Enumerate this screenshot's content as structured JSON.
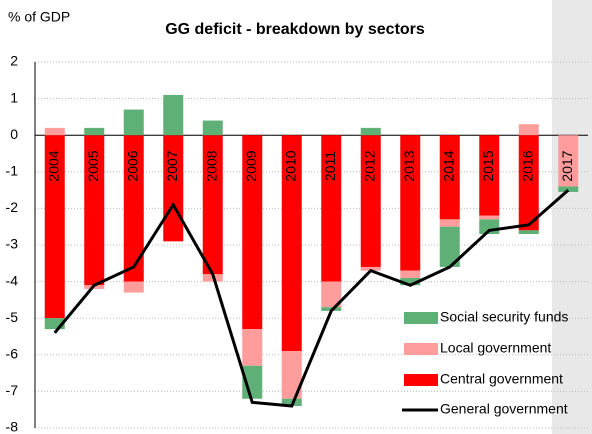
{
  "chart_data": {
    "type": "bar",
    "stacked": true,
    "title": "GG deficit - breakdown by sectors",
    "y_label": "% of GDP",
    "categories": [
      "2004",
      "2005",
      "2006",
      "2007",
      "2008",
      "2009",
      "2010",
      "2011",
      "2012",
      "2013",
      "2014",
      "2015",
      "2016",
      "2017"
    ],
    "series": [
      {
        "name": "Social security funds",
        "color": "#5fb077",
        "values": [
          -0.3,
          0.2,
          0.7,
          1.1,
          0.4,
          -0.9,
          -0.2,
          -0.1,
          0.2,
          -0.2,
          -1.1,
          -0.4,
          -0.1,
          -0.15
        ]
      },
      {
        "name": "Local government",
        "color": "#ff9d9d",
        "values": [
          0.2,
          -0.1,
          -0.3,
          0,
          -0.2,
          -1.0,
          -1.3,
          -0.7,
          -0.1,
          -0.2,
          -0.2,
          -0.1,
          0.3,
          -1.4
        ]
      },
      {
        "name": "Central government",
        "color": "#ff0000",
        "values": [
          -5.0,
          -4.1,
          -4.0,
          -2.9,
          -3.8,
          -5.3,
          -5.9,
          -4.0,
          -3.6,
          -3.7,
          -2.3,
          -2.2,
          -2.6,
          0
        ]
      },
      {
        "name": "General government",
        "color": "#000000",
        "type": "line",
        "values": [
          -5.4,
          -4.1,
          -3.6,
          -1.9,
          -3.8,
          -7.3,
          -7.4,
          -4.8,
          -3.7,
          -4.1,
          -3.6,
          -2.6,
          -2.45,
          -1.5
        ]
      }
    ],
    "ylim": [
      -8,
      2
    ],
    "yticks": [
      -8,
      -7,
      -6,
      -5,
      -4,
      -3,
      -2,
      -1,
      0,
      1,
      2
    ],
    "grid": true,
    "legend": "lower right"
  }
}
